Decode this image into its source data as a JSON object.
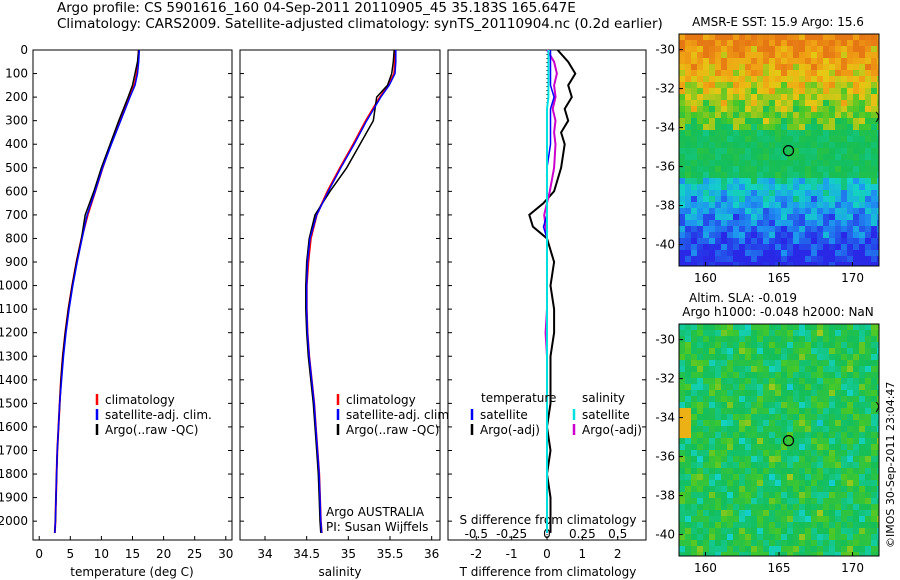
{
  "header": {
    "line1": "Argo profile: CS 5901616_160 04-Sep-2011 20110905_45 35.183S 165.647E",
    "line2": "Climatology: CARS2009. Satellite-adjusted climatology: synTS_20110904.nc (0.2d earlier)"
  },
  "watermark": "©IMOS 30-Sep-2011 23:04:47",
  "colors": {
    "climatology": "#ff0000",
    "satellite": "#0000ff",
    "argo": "#000000",
    "sal_satellite": "#00e0e0",
    "sal_argo": "#cc00cc"
  },
  "chart_data": [
    {
      "id": "temperature",
      "type": "line",
      "xlabel": "temperature (deg C)",
      "ylabel": "",
      "xlim": [
        -1,
        31
      ],
      "ylim": [
        2080,
        0
      ],
      "xticks": [
        0,
        5,
        10,
        15,
        20,
        25,
        30
      ],
      "yticks": [
        0,
        100,
        200,
        300,
        400,
        500,
        600,
        700,
        800,
        900,
        1000,
        1100,
        1200,
        1300,
        1400,
        1500,
        1600,
        1700,
        1800,
        1900,
        2000
      ],
      "legend": [
        "climatology",
        "satellite-adj. clim.",
        "Argo(..raw -QC)"
      ],
      "depth": [
        0,
        50,
        100,
        150,
        200,
        300,
        400,
        500,
        600,
        700,
        800,
        900,
        1000,
        1100,
        1200,
        1300,
        1400,
        1500,
        1600,
        1700,
        1800,
        1900,
        2000,
        2050
      ],
      "series": [
        {
          "name": "climatology",
          "color": "#ff0000",
          "values": [
            16.0,
            15.9,
            15.7,
            15.3,
            14.4,
            12.9,
            11.5,
            10.2,
            9.0,
            7.8,
            6.8,
            6.0,
            5.3,
            4.7,
            4.2,
            3.8,
            3.5,
            3.3,
            3.1,
            2.9,
            2.8,
            2.7,
            2.6,
            2.5
          ]
        },
        {
          "name": "satellite-adj. clim.",
          "color": "#0000ff",
          "values": [
            16.1,
            16.0,
            15.8,
            15.4,
            14.6,
            13.1,
            11.6,
            10.2,
            9.0,
            7.7,
            6.9,
            6.1,
            5.4,
            4.8,
            4.3,
            3.9,
            3.6,
            3.3,
            3.1,
            2.9,
            2.8,
            2.7,
            2.6,
            2.5
          ]
        },
        {
          "name": "Argo(..raw -QC)",
          "color": "#000000",
          "values": [
            16.0,
            15.8,
            15.4,
            15.0,
            14.3,
            12.8,
            11.4,
            10.0,
            8.8,
            7.4,
            6.8,
            6.0,
            5.3,
            4.7,
            4.2,
            3.8,
            3.5,
            3.3,
            3.1,
            2.9,
            2.8,
            2.7,
            2.6,
            2.5
          ]
        }
      ]
    },
    {
      "id": "salinity",
      "type": "line",
      "xlabel": "salinity",
      "xlim": [
        33.7,
        36.1
      ],
      "ylim": [
        2080,
        0
      ],
      "xticks": [
        34,
        34.5,
        35,
        35.5,
        36
      ],
      "xticklabels": [
        "34",
        "34.5",
        "35",
        "35.5",
        "36"
      ],
      "legend": [
        "climatology",
        "satellite-adj. clim.",
        "Argo(..raw -QC)"
      ],
      "annotation": [
        "Argo AUSTRALIA",
        "PI: Susan Wijffels"
      ],
      "depth": [
        0,
        50,
        100,
        150,
        200,
        300,
        400,
        500,
        600,
        700,
        800,
        900,
        1000,
        1100,
        1200,
        1300,
        1400,
        1500,
        1600,
        1700,
        1800,
        1900,
        2000,
        2050
      ],
      "series": [
        {
          "name": "climatology",
          "color": "#ff0000",
          "values": [
            35.56,
            35.56,
            35.55,
            35.48,
            35.38,
            35.21,
            35.06,
            34.9,
            34.75,
            34.62,
            34.55,
            34.52,
            34.5,
            34.5,
            34.51,
            34.53,
            34.56,
            34.59,
            34.61,
            34.63,
            34.65,
            34.66,
            34.67,
            34.68
          ]
        },
        {
          "name": "satellite-adj. clim.",
          "color": "#0000ff",
          "values": [
            35.57,
            35.57,
            35.56,
            35.49,
            35.39,
            35.22,
            35.07,
            34.91,
            34.76,
            34.62,
            34.54,
            34.51,
            34.5,
            34.5,
            34.51,
            34.53,
            34.56,
            34.59,
            34.61,
            34.63,
            34.65,
            34.66,
            34.67,
            34.68
          ]
        },
        {
          "name": "Argo(..raw -QC)",
          "color": "#000000",
          "values": [
            35.55,
            35.54,
            35.52,
            35.47,
            35.34,
            35.3,
            35.14,
            34.98,
            34.78,
            34.6,
            34.53,
            34.5,
            34.49,
            34.49,
            34.5,
            34.52,
            34.55,
            34.58,
            34.6,
            34.62,
            34.64,
            34.65,
            34.66,
            34.67
          ]
        }
      ]
    },
    {
      "id": "difference",
      "type": "line",
      "xlabel": "T difference from climatology",
      "xlabel_top": "S difference from climatology",
      "xlim": [
        -2.8,
        2.8
      ],
      "ylim": [
        2080,
        0
      ],
      "xticks": [
        -2,
        -1,
        0,
        1,
        2
      ],
      "sticks": [
        "-0.5",
        "-0.25",
        "0",
        "0.25",
        "0.5"
      ],
      "legend_headers": [
        "temperature",
        "salinity"
      ],
      "legend_left": [
        "satellite",
        "Argo(-adj)"
      ],
      "legend_right": [
        "satellite",
        "Argo(-adj)"
      ],
      "depth": [
        0,
        50,
        100,
        150,
        200,
        250,
        300,
        350,
        400,
        500,
        600,
        650,
        700,
        750,
        800,
        900,
        1000,
        1100,
        1200,
        1300,
        1400,
        1500,
        1600,
        1700,
        1800,
        1900,
        2000,
        2050
      ],
      "series": [
        {
          "name": "T satellite",
          "color": "#0000ff",
          "values": [
            0.1,
            0.1,
            0.1,
            0.1,
            0.2,
            0.1,
            0.1,
            0.1,
            0.1,
            0.0,
            0.0,
            0.0,
            0.0,
            -0.1,
            0.0,
            0.0,
            0.0,
            0.0,
            0.0,
            0.0,
            0.0,
            0.0,
            0.0,
            0.0,
            0.0,
            0.0,
            0.0,
            0.0
          ]
        },
        {
          "name": "T Argo(-adj)",
          "color": "#000000",
          "values": [
            0.3,
            0.6,
            0.8,
            0.6,
            0.7,
            0.5,
            0.6,
            0.4,
            0.5,
            0.4,
            0.2,
            -0.1,
            -0.5,
            -0.4,
            0.0,
            0.2,
            0.1,
            0.2,
            0.2,
            0.1,
            0.1,
            0.1,
            0.0,
            0.1,
            0.0,
            0.1,
            0.1,
            0.1
          ]
        },
        {
          "name": "S satellite",
          "color": "#00e0e0",
          "values": [
            0.01,
            0.01,
            0.01,
            0.01,
            0.01,
            0.0,
            0.0,
            0.0,
            0.0,
            0.0,
            0.0,
            0.0,
            0.0,
            0.0,
            0.0,
            0.0,
            0.0,
            0.0,
            0.0,
            0.0,
            0.0,
            0.0,
            0.0,
            0.0,
            0.0,
            0.0,
            0.0,
            0.0
          ]
        },
        {
          "name": "S Argo(-adj)",
          "color": "#cc00cc",
          "values": [
            0.0,
            0.05,
            0.07,
            0.05,
            0.06,
            0.04,
            0.06,
            0.05,
            0.06,
            0.05,
            0.02,
            0.0,
            -0.02,
            -0.01,
            0.0,
            0.0,
            0.0,
            0.0,
            -0.01,
            0.0,
            0.0,
            0.0,
            0.0,
            0.0,
            0.0,
            0.0,
            0.0,
            0.0
          ]
        }
      ]
    },
    {
      "id": "sst-map",
      "type": "heatmap",
      "title": "AMSR-E SST: 15.9 Argo: 15.6",
      "xticks": [
        160,
        165,
        170
      ],
      "yticks": [
        -30,
        -32,
        -34,
        -36,
        -38,
        -40
      ],
      "marker": {
        "lon": 165.647,
        "lat": -35.183
      }
    },
    {
      "id": "sla-map",
      "type": "heatmap",
      "title_line1": "Altim. SLA: -0.019",
      "title_line2": "Argo h1000: -0.048 h2000: NaN",
      "xticks": [
        160,
        165,
        170
      ],
      "yticks": [
        -30,
        -32,
        -34,
        -36,
        -38,
        -40
      ],
      "marker": {
        "lon": 165.647,
        "lat": -35.183
      }
    }
  ]
}
